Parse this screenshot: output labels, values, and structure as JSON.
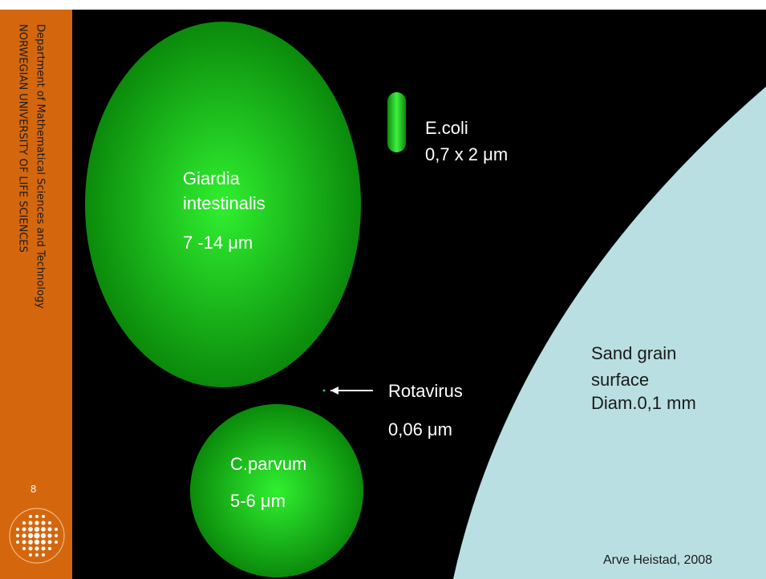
{
  "sidebar": {
    "department": "Department of Mathematical Sciences and Technology",
    "university": "NORWEGIAN UNIVERSITY OF LIFE SCIENCES",
    "page_number": "8"
  },
  "giardia": {
    "name_line1": "Giardia",
    "name_line2": "intestinalis",
    "size": "7 -14 μm"
  },
  "ecoli": {
    "name": "E.coli",
    "size": "0,7 x 2 μm"
  },
  "rotavirus": {
    "name": "Rotavirus",
    "size": "0,06 μm"
  },
  "cparvum": {
    "name": "C.parvum",
    "size": "5-6 μm"
  },
  "sand_grain": {
    "line1": "Sand grain",
    "line2": "surface",
    "line3": "Diam.0,1 mm"
  },
  "credit": "Arve Heistad, 2008"
}
